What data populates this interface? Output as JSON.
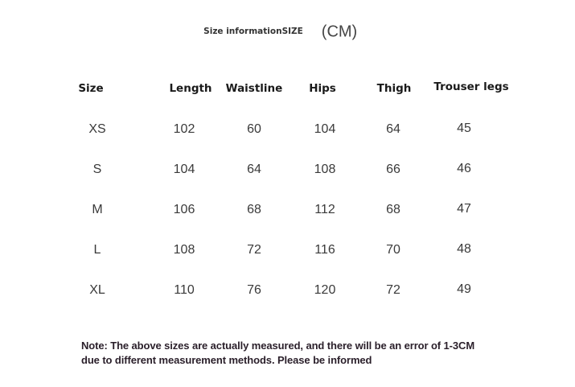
{
  "title": "Size informationSIZE",
  "unit": "(CM)",
  "table": {
    "headers": [
      "Size",
      "Length",
      "Waistline",
      "Hips",
      "Thigh",
      "Trouser legs"
    ],
    "rows": [
      [
        "XS",
        "102",
        "60",
        "104",
        "64",
        "45"
      ],
      [
        "S",
        "104",
        "64",
        "108",
        "66",
        "46"
      ],
      [
        "M",
        "106",
        "68",
        "112",
        "68",
        "47"
      ],
      [
        "L",
        "108",
        "72",
        "116",
        "70",
        "48"
      ],
      [
        "XL",
        "110",
        "76",
        "120",
        "72",
        "49"
      ]
    ]
  },
  "note": {
    "line1": "Note: The above sizes are actually measured, and there will be an error of 1-3CM",
    "line2": "due to different measurement methods. Please be informed"
  }
}
